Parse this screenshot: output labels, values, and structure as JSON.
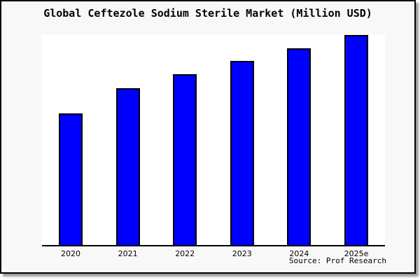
{
  "chart_data": {
    "type": "bar",
    "title": "Global Ceftezole Sodium Sterile Market (Million USD)",
    "categories": [
      "2020",
      "2021",
      "2022",
      "2023",
      "2024",
      "2025e"
    ],
    "values_relative": [
      62.7,
      74.7,
      81.3,
      87.7,
      93.7,
      100
    ],
    "value_scale_note": "no y-axis tick labels visible; values are relative bar heights (2025e = 100)",
    "unit": "Million USD",
    "xlabel": "",
    "ylabel": "",
    "ylim_relative": [
      0,
      100
    ],
    "grid": false,
    "legend": false,
    "source": "Source: Prof Research",
    "colors": {
      "bar_fill": "#0000ff",
      "bar_border": "#000000",
      "plot_background": "#ffffff",
      "page_background": "#f8f8f8",
      "frame_border": "#000000",
      "axis_line": "#000000",
      "text": "#000000"
    }
  }
}
